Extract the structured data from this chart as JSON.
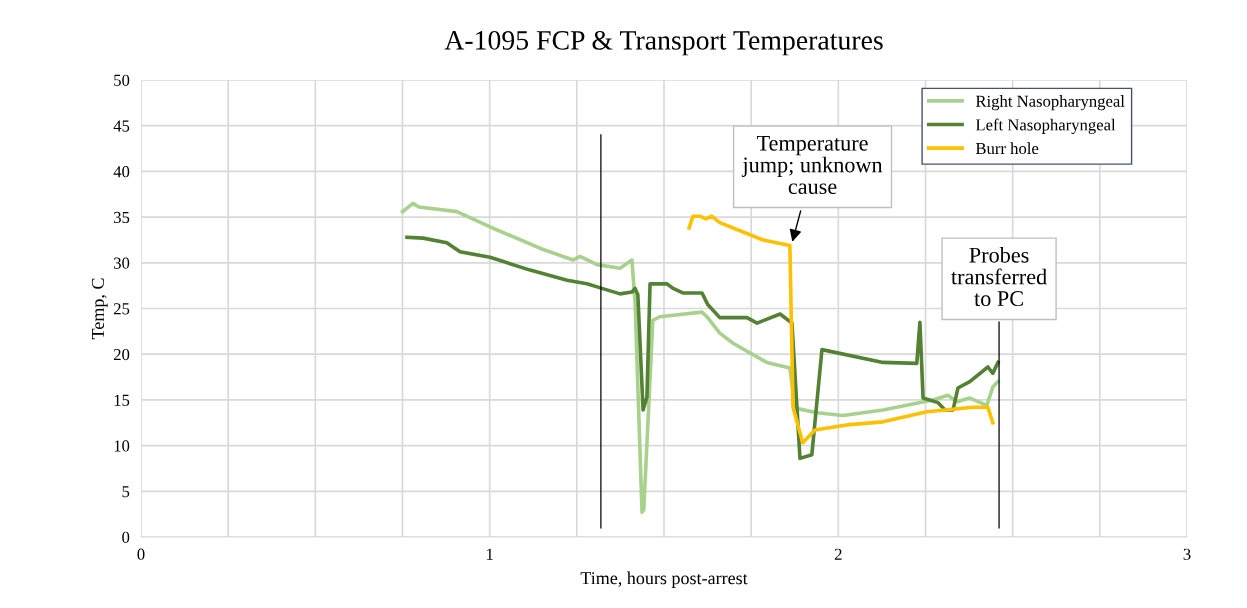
{
  "chart_data": {
    "type": "line",
    "title": "A-1095 FCP & Transport Temperatures",
    "xlabel": "Time, hours post-arrest",
    "ylabel": "Temp, C",
    "xlim": [
      0,
      3
    ],
    "ylim": [
      0,
      50
    ],
    "xticks": [
      0,
      {
        "value": 0.25,
        "label": null
      },
      {
        "value": 0.5,
        "label": null
      },
      {
        "value": 0.75,
        "label": null
      },
      1,
      {
        "value": 1.25,
        "label": null
      },
      {
        "value": 1.5,
        "label": null
      },
      {
        "value": 1.75,
        "label": null
      },
      2,
      {
        "value": 2.25,
        "label": null
      },
      {
        "value": 2.5,
        "label": null
      },
      {
        "value": 2.75,
        "label": null
      },
      3
    ],
    "yticks": [
      0,
      5,
      10,
      15,
      20,
      25,
      30,
      35,
      40,
      45,
      50
    ],
    "grid": true,
    "legend": "top right",
    "series": [
      {
        "name": "Right Nasopharyngeal",
        "color": "#a9d18e",
        "x": [
          0.75,
          0.78,
          0.797,
          0.906,
          1.009,
          1.144,
          1.239,
          1.259,
          1.308,
          1.374,
          1.408,
          1.417,
          1.437,
          1.442,
          1.468,
          1.488,
          1.609,
          1.623,
          1.66,
          1.698,
          1.795,
          1.861,
          1.876,
          1.939,
          2.013,
          2.128,
          2.271,
          2.314,
          2.34,
          2.377,
          2.426,
          2.443,
          2.458
        ],
        "values": [
          35.6,
          36.5,
          36.1,
          35.6,
          33.8,
          31.6,
          30.3,
          30.7,
          29.8,
          29.4,
          30.3,
          25.7,
          2.7,
          3.0,
          23.7,
          24.1,
          24.6,
          24.1,
          22.3,
          21.2,
          19.1,
          18.5,
          14.1,
          13.6,
          13.3,
          13.9,
          15.0,
          15.5,
          14.8,
          15.2,
          14.4,
          16.4,
          17.0
        ]
      },
      {
        "name": "Left Nasopharyngeal",
        "color": "#548235",
        "x": [
          0.763,
          0.809,
          0.877,
          0.915,
          1.001,
          1.116,
          1.222,
          1.279,
          1.322,
          1.374,
          1.408,
          1.417,
          1.425,
          1.44,
          1.451,
          1.46,
          1.508,
          1.526,
          1.554,
          1.609,
          1.626,
          1.66,
          1.738,
          1.767,
          1.833,
          1.867,
          1.89,
          1.924,
          1.953,
          2.128,
          2.225,
          2.234,
          2.243,
          2.286,
          2.306,
          2.329,
          2.343,
          2.377,
          2.429,
          2.443,
          2.458
        ],
        "values": [
          32.8,
          32.7,
          32.2,
          31.2,
          30.6,
          29.2,
          28.1,
          27.7,
          27.2,
          26.6,
          26.8,
          27.2,
          26.5,
          13.9,
          15.3,
          27.7,
          27.7,
          27.2,
          26.7,
          26.7,
          25.4,
          24.0,
          24.0,
          23.4,
          24.4,
          23.4,
          8.6,
          9.0,
          20.5,
          19.1,
          19.0,
          23.5,
          15.2,
          14.7,
          13.9,
          13.9,
          16.3,
          17.0,
          18.6,
          17.9,
          19.1
        ]
      },
      {
        "name": "Burr hole",
        "color": "#ffc000",
        "x": [
          1.572,
          1.583,
          1.603,
          1.62,
          1.637,
          1.66,
          1.784,
          1.861,
          1.87,
          1.898,
          1.933,
          2.033,
          2.128,
          2.254,
          2.386,
          2.429,
          2.443
        ],
        "values": [
          33.8,
          35.1,
          35.1,
          34.8,
          35.1,
          34.4,
          32.5,
          31.9,
          14.2,
          10.3,
          11.7,
          12.3,
          12.6,
          13.7,
          14.2,
          14.2,
          12.5
        ]
      }
    ],
    "ref_lines": [
      {
        "axis": "x",
        "value": 1.319,
        "color": "#000000"
      },
      {
        "axis": "x",
        "value": 2.461,
        "label": "Probes\ntransferred\nto PC",
        "color": "#000000"
      }
    ],
    "annotations": [
      {
        "text": "Temperature\njump; unknown\ncause",
        "x": 1.866,
        "y": 32
      }
    ]
  }
}
